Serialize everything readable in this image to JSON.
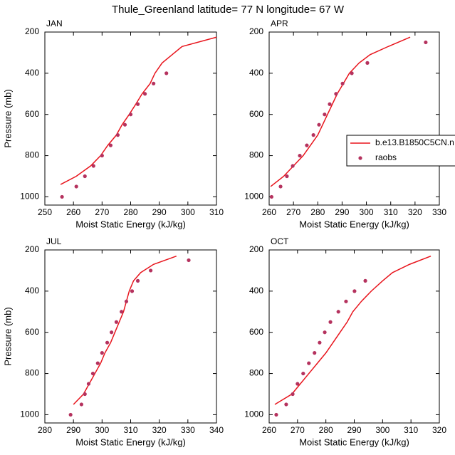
{
  "title": "Thule_Greenland  latitude= 77 N longitude= 67 W",
  "chart_data": [
    {
      "type": "line",
      "panel_label": "JAN",
      "xlabel": "Moist Static Energy (kJ/kg)",
      "ylabel": "Pressure (mb)",
      "xlim": [
        250,
        310
      ],
      "xticks": [
        250,
        260,
        270,
        280,
        290,
        300,
        310
      ],
      "ylim": [
        1040,
        200
      ],
      "yticks": [
        200,
        400,
        600,
        800,
        1000
      ],
      "series": [
        {
          "style": "line",
          "color": "#e8141c",
          "x": [
            255.5,
            261,
            266,
            269.5,
            272,
            275,
            277,
            279.5,
            281.8,
            284,
            286.8,
            288.5,
            291,
            294.5,
            298,
            310
          ],
          "y": [
            940,
            900,
            850,
            800,
            750,
            700,
            650,
            600,
            550,
            500,
            450,
            400,
            350,
            310,
            270,
            225
          ]
        },
        {
          "style": "dots",
          "color": "#b5325e",
          "x": [
            256,
            261,
            264,
            267,
            270,
            273,
            275.5,
            278,
            280,
            282.5,
            285,
            288,
            292.5
          ],
          "y": [
            1000,
            950,
            900,
            850,
            800,
            750,
            700,
            650,
            600,
            550,
            500,
            450,
            400
          ]
        }
      ]
    },
    {
      "type": "line",
      "panel_label": "APR",
      "xlabel": "Moist Static Energy (kJ/kg)",
      "xlim": [
        260,
        330
      ],
      "xticks": [
        260,
        270,
        280,
        290,
        300,
        310,
        320,
        330
      ],
      "ylim": [
        1040,
        200
      ],
      "yticks": [
        200,
        400,
        600,
        800,
        1000
      ],
      "legend": "right",
      "series": [
        {
          "name": "b.e13.B1850C5CN.n",
          "style": "line",
          "color": "#e8141c",
          "x": [
            260.6,
            266,
            270,
            274,
            277,
            280,
            282,
            284,
            286,
            288,
            290.5,
            293,
            297,
            301.5,
            309,
            318
          ],
          "y": [
            950,
            900,
            850,
            800,
            750,
            700,
            650,
            600,
            550,
            500,
            450,
            400,
            350,
            310,
            270,
            225
          ]
        },
        {
          "name": "raobs",
          "style": "dots",
          "color": "#b5325e",
          "x": [
            261,
            264.7,
            267.3,
            269.7,
            272.6,
            275.5,
            278.2,
            280.5,
            282.8,
            284.9,
            287.5,
            290.2,
            294,
            300.4,
            324.4
          ],
          "y": [
            1000,
            950,
            900,
            850,
            800,
            750,
            700,
            650,
            600,
            550,
            500,
            450,
            400,
            350,
            250
          ]
        }
      ]
    },
    {
      "type": "line",
      "panel_label": "JUL",
      "xlabel": "Moist Static Energy (kJ/kg)",
      "ylabel": "Pressure (mb)",
      "xlim": [
        280,
        340
      ],
      "xticks": [
        280,
        290,
        300,
        310,
        320,
        330,
        340
      ],
      "ylim": [
        1040,
        200
      ],
      "yticks": [
        200,
        400,
        600,
        800,
        1000
      ],
      "series": [
        {
          "style": "line",
          "color": "#e8141c",
          "x": [
            290,
            293.5,
            295.5,
            297.5,
            299.5,
            301,
            303,
            304.5,
            306,
            307.5,
            308.5,
            309.5,
            311,
            313.5,
            318,
            326
          ],
          "y": [
            950,
            900,
            850,
            800,
            750,
            700,
            650,
            600,
            550,
            500,
            450,
            400,
            350,
            310,
            270,
            230
          ]
        },
        {
          "style": "dots",
          "color": "#b5325e",
          "x": [
            289,
            292.8,
            294,
            295.3,
            296.8,
            298.5,
            300,
            301.8,
            303.3,
            305,
            306.8,
            308.5,
            310.5,
            312.5,
            317,
            330.3
          ],
          "y": [
            1000,
            950,
            900,
            850,
            800,
            750,
            700,
            650,
            600,
            550,
            500,
            450,
            400,
            350,
            300,
            250
          ]
        }
      ]
    },
    {
      "type": "line",
      "panel_label": "OCT",
      "xlabel": "Moist Static Energy (kJ/kg)",
      "xlim": [
        260,
        320
      ],
      "xticks": [
        260,
        270,
        280,
        290,
        300,
        310,
        320
      ],
      "ylim": [
        1040,
        200
      ],
      "yticks": [
        200,
        400,
        600,
        800,
        1000
      ],
      "series": [
        {
          "style": "line",
          "color": "#e8141c",
          "x": [
            262,
            268,
            271,
            274,
            277,
            280,
            282.5,
            285,
            287.5,
            289.5,
            292.5,
            296,
            300,
            303.5,
            309.5,
            317
          ],
          "y": [
            950,
            900,
            850,
            800,
            750,
            700,
            650,
            600,
            550,
            500,
            450,
            400,
            350,
            310,
            270,
            230
          ]
        },
        {
          "style": "dots",
          "color": "#b5325e",
          "x": [
            262.5,
            266,
            268.3,
            270,
            272,
            274,
            276,
            277.8,
            279.6,
            281.6,
            284.4,
            287.1,
            290.1,
            293.9
          ],
          "y": [
            1000,
            950,
            900,
            850,
            800,
            750,
            700,
            650,
            600,
            550,
            500,
            450,
            400,
            350
          ]
        }
      ]
    }
  ]
}
